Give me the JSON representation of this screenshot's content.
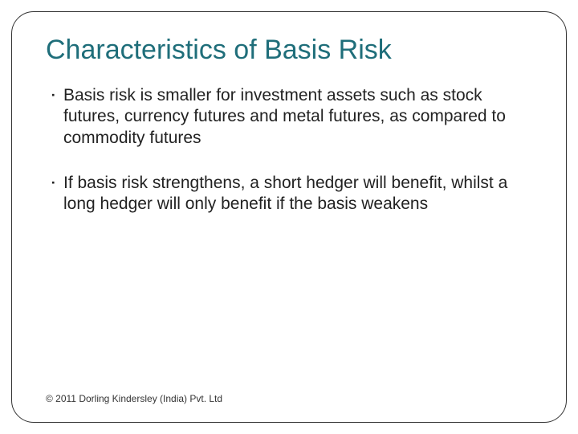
{
  "slide": {
    "title": "Characteristics of Basis Risk",
    "bullet_glyph": "⠐",
    "bullets": [
      "Basis risk is smaller for investment assets such as stock futures, currency futures and metal futures, as compared to commodity futures",
      "If basis risk strengthens, a short hedger will benefit, whilst a long hedger will only benefit if the basis weakens"
    ],
    "footer": "© 2011 Dorling Kindersley (India) Pvt. Ltd"
  },
  "styling": {
    "title_color": "#1f6e7a",
    "title_fontsize": 34,
    "body_color": "#222222",
    "body_fontsize": 21,
    "footer_fontsize": 12,
    "border_color": "#333333",
    "border_radius": 28,
    "background_color": "#ffffff"
  }
}
